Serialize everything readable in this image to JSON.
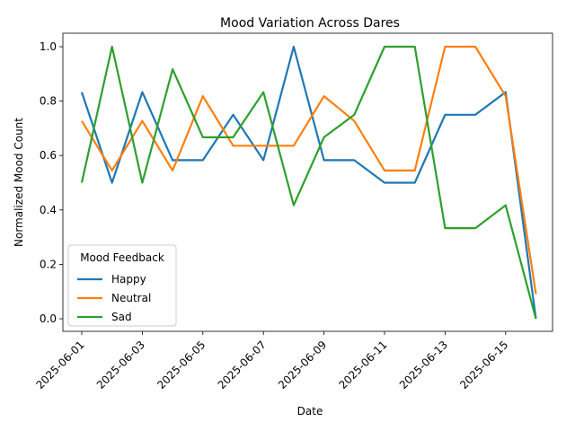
{
  "chart_data": {
    "type": "line",
    "title": "Mood Variation Across Dares",
    "xlabel": "Date",
    "ylabel": "Normalized Mood Count",
    "x": [
      "2025-06-01",
      "2025-06-02",
      "2025-06-03",
      "2025-06-04",
      "2025-06-05",
      "2025-06-06",
      "2025-06-07",
      "2025-06-08",
      "2025-06-09",
      "2025-06-10",
      "2025-06-11",
      "2025-06-12",
      "2025-06-13",
      "2025-06-14",
      "2025-06-15",
      "2025-06-16"
    ],
    "x_tick_labels": [
      "2025-06-01",
      "2025-06-03",
      "2025-06-05",
      "2025-06-07",
      "2025-06-09",
      "2025-06-11",
      "2025-06-13",
      "2025-06-15"
    ],
    "ylim": [
      0.0,
      1.0
    ],
    "y_ticks": [
      "0.0",
      "0.2",
      "0.4",
      "0.6",
      "0.8",
      "1.0"
    ],
    "grid": false,
    "legend": {
      "title": "Mood Feedback",
      "placement": "lower-left"
    },
    "series": [
      {
        "name": "Happy",
        "color": "#1f77b4",
        "values": [
          0.833,
          0.5,
          0.833,
          0.583,
          0.583,
          0.75,
          0.583,
          1.0,
          0.583,
          0.583,
          0.5,
          0.5,
          0.75,
          0.75,
          0.833,
          0.0
        ]
      },
      {
        "name": "Neutral",
        "color": "#ff7f0e",
        "values": [
          0.727,
          0.545,
          0.727,
          0.545,
          0.818,
          0.636,
          0.636,
          0.636,
          0.818,
          0.727,
          0.545,
          0.545,
          1.0,
          1.0,
          0.818,
          0.091
        ]
      },
      {
        "name": "Sad",
        "color": "#2ca02c",
        "values": [
          0.5,
          1.0,
          0.5,
          0.917,
          0.667,
          0.667,
          0.833,
          0.417,
          0.667,
          0.75,
          1.0,
          1.0,
          0.333,
          0.333,
          0.417,
          0.0
        ]
      }
    ]
  }
}
